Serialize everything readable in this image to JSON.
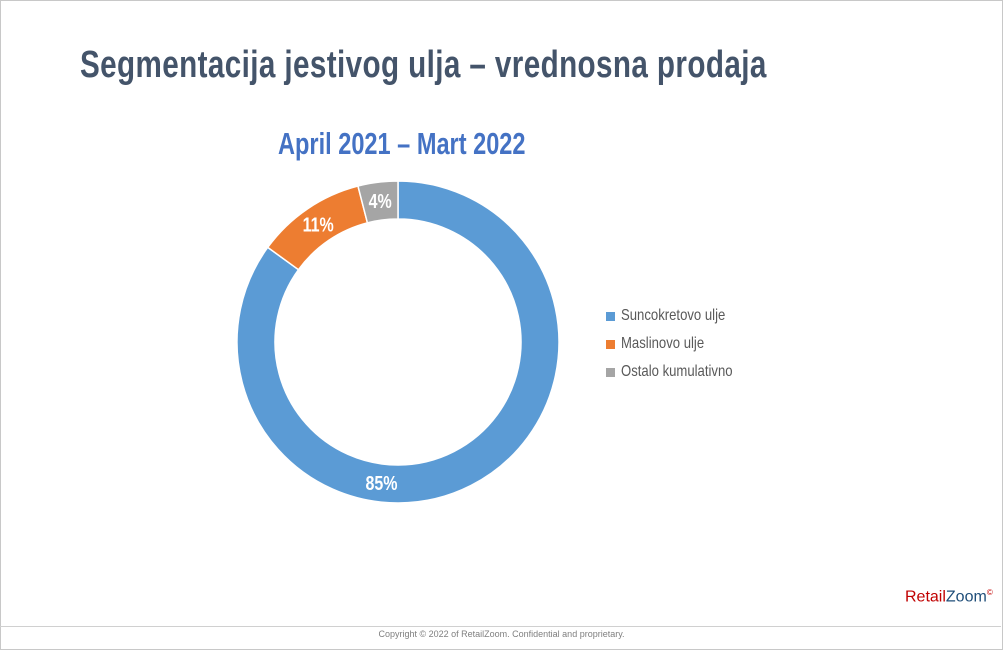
{
  "slide": {
    "title": "Segmentacija jestivog ulja – vrednosna prodaja",
    "footer": "Copyright © 2022 of RetailZoom. Confidential and proprietary.",
    "logo": {
      "part1": "Retail",
      "part2": "Zoom",
      "mark": "©"
    }
  },
  "chart_data": {
    "type": "pie",
    "variant": "doughnut",
    "title": "April 2021 – Mart 2022",
    "categories": [
      "Suncokretovo ulje",
      "Maslinovo ulje",
      "Ostalo kumulativno"
    ],
    "values": [
      85,
      11,
      4
    ],
    "data_labels": [
      "85%",
      "11%",
      "4%"
    ],
    "colors": [
      "#5b9bd5",
      "#ed7d31",
      "#a5a5a5"
    ],
    "legend_position": "right"
  }
}
